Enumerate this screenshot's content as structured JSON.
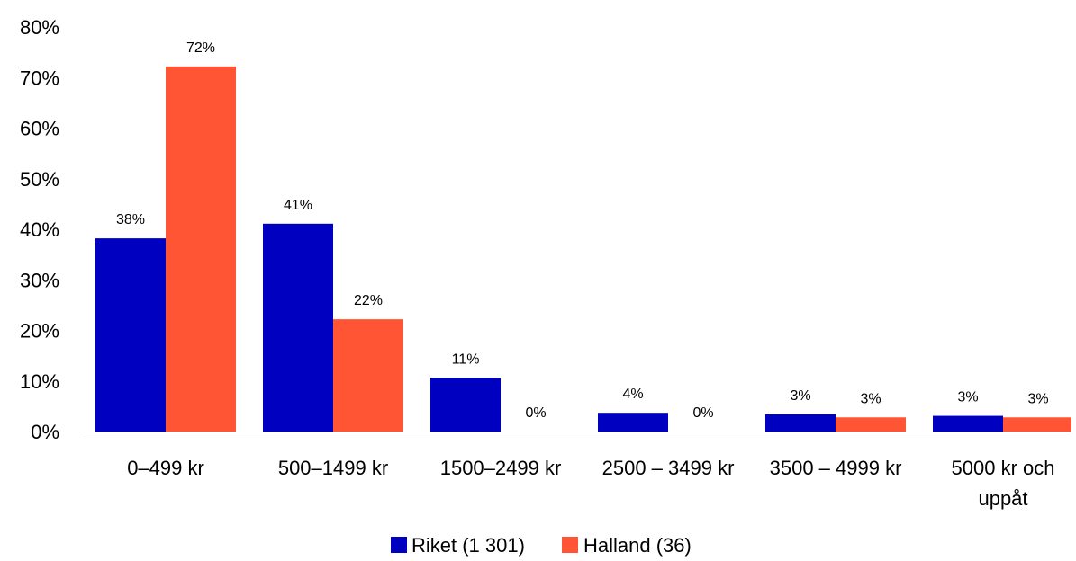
{
  "chart_data": {
    "type": "bar",
    "title": "",
    "xlabel": "",
    "ylabel": "",
    "ylim": [
      0,
      80
    ],
    "yticks": [
      "0%",
      "10%",
      "20%",
      "30%",
      "40%",
      "50%",
      "60%",
      "70%",
      "80%"
    ],
    "categories": [
      [
        "0–499 kr"
      ],
      [
        "500–1499 kr"
      ],
      [
        "1500–2499 kr"
      ],
      [
        "2500 – 3499 kr"
      ],
      [
        "3500 – 4999 kr"
      ],
      [
        "5000 kr och",
        "uppåt"
      ]
    ],
    "series": [
      {
        "name": "Riket (1 301)",
        "color": "#0000c0",
        "values": [
          38.2,
          41.1,
          10.6,
          3.7,
          3.4,
          3.1
        ],
        "labels": [
          "38%",
          "41%",
          "11%",
          "4%",
          "3%",
          "3%"
        ]
      },
      {
        "name": "Halland (36)",
        "color": "#ff5535",
        "values": [
          72.2,
          22.2,
          0,
          0,
          2.8,
          2.8
        ],
        "labels": [
          "72%",
          "22%",
          "0%",
          "0%",
          "3%",
          "3%"
        ]
      }
    ],
    "grid": false,
    "legend": "bottom-center"
  }
}
